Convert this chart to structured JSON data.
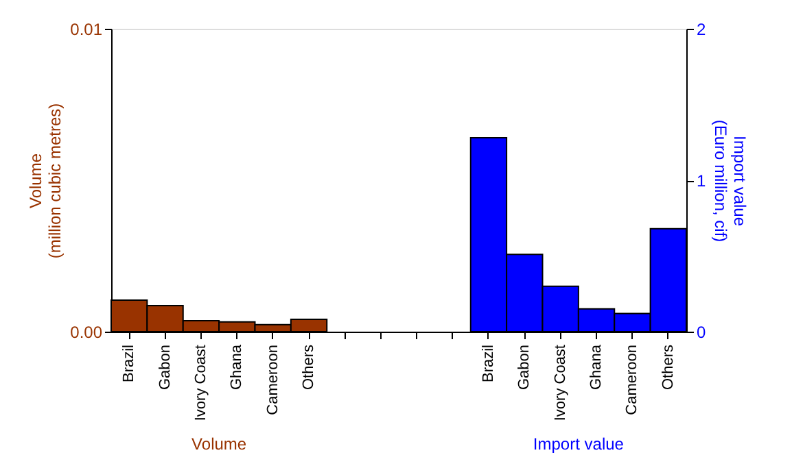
{
  "chart_data": {
    "type": "bar",
    "categories": [
      "Brazil",
      "Gabon",
      "Ivory Coast",
      "Ghana",
      "Cameroon",
      "Others",
      null,
      null,
      null,
      null,
      "Brazil",
      "Gabon",
      "Ivory Coast",
      "Ghana",
      "Cameroon",
      "Others"
    ],
    "series": [
      {
        "name": "Volume",
        "color": "#993300",
        "values": [
          0.00104,
          0.00086,
          0.00036,
          0.00032,
          0.00023,
          0.00041,
          null,
          null,
          null,
          null,
          null,
          null,
          null,
          null,
          null,
          null
        ]
      },
      {
        "name": "Import value",
        "color": "#0000ff",
        "axis": "y2",
        "values": [
          null,
          null,
          null,
          null,
          null,
          null,
          null,
          null,
          null,
          null,
          1.28,
          0.51,
          0.3,
          0.15,
          0.12,
          0.68
        ]
      }
    ],
    "ylabel": "Volume\n(million cubic metres)",
    "y2label": "Import value\n(Euro million, cif)",
    "ylim": [
      0,
      0.01
    ],
    "yticks": [
      {
        "value": 0,
        "label": "0.00"
      },
      0.01
    ],
    "y2lim": [
      0,
      2
    ],
    "y2ticks": [
      0,
      1,
      2
    ]
  }
}
